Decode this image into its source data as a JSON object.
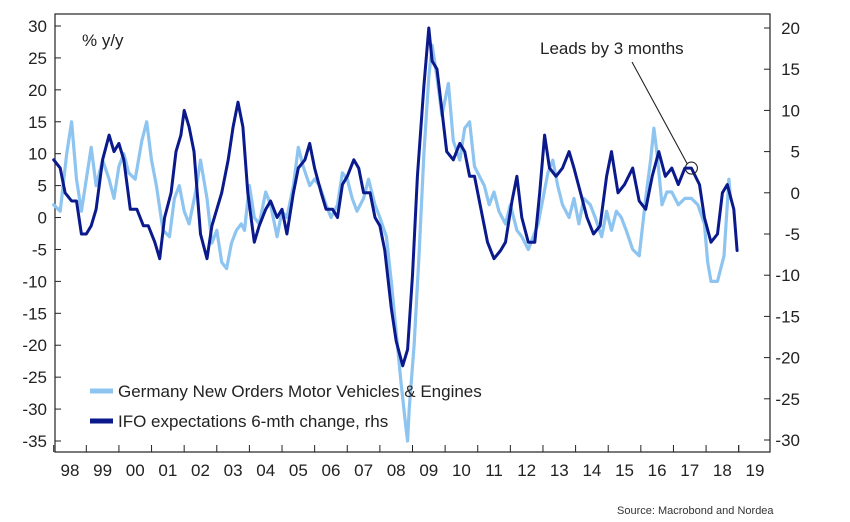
{
  "chart_data": {
    "type": "line",
    "ylabel_left": "% y/y",
    "ylabel_right": "",
    "ylim_left": [
      -37,
      30
    ],
    "ylim_right": [
      -31,
      20
    ],
    "yticks_left": [
      "30",
      "25",
      "20",
      "15",
      "10",
      "5",
      "0",
      "-5",
      "-10",
      "-15",
      "-20",
      "-25",
      "-30",
      "-35"
    ],
    "yticks_right": [
      "20",
      "15",
      "10",
      "5",
      "0",
      "-5",
      "-10",
      "-15",
      "-20",
      "-25",
      "-30"
    ],
    "xlim": [
      1998.0,
      2019.3
    ],
    "xticks": [
      "98",
      "99",
      "00",
      "01",
      "02",
      "03",
      "04",
      "05",
      "06",
      "07",
      "08",
      "09",
      "10",
      "11",
      "12",
      "13",
      "14",
      "15",
      "16",
      "17",
      "18",
      "19"
    ],
    "grid": false,
    "legend_placement": "bottom-left",
    "annotation": {
      "text": "Leads by 3 months",
      "x": 2017.55,
      "y_right": 3.0
    },
    "source": "Source: Macrobond and Nordea",
    "colors": {
      "light": "#8ec4f0",
      "dark": "#0a1a8c"
    },
    "series": [
      {
        "name": "Germany New Orders Motor Vehicles & Engines",
        "axis": "left",
        "color": "#8ec4f0",
        "points": [
          [
            1998.0,
            2
          ],
          [
            1998.2,
            1
          ],
          [
            1998.4,
            10
          ],
          [
            1998.55,
            15
          ],
          [
            1998.7,
            6
          ],
          [
            1998.85,
            1
          ],
          [
            1999.0,
            6
          ],
          [
            1999.15,
            11
          ],
          [
            1999.3,
            5
          ],
          [
            1999.5,
            9
          ],
          [
            1999.7,
            6
          ],
          [
            1999.85,
            3
          ],
          [
            2000.0,
            8
          ],
          [
            2000.15,
            10
          ],
          [
            2000.3,
            7
          ],
          [
            2000.5,
            6
          ],
          [
            2000.7,
            12
          ],
          [
            2000.85,
            15
          ],
          [
            2001.0,
            9
          ],
          [
            2001.15,
            5
          ],
          [
            2001.35,
            -2
          ],
          [
            2001.55,
            -3
          ],
          [
            2001.7,
            3
          ],
          [
            2001.85,
            5
          ],
          [
            2002.0,
            1
          ],
          [
            2002.15,
            -1
          ],
          [
            2002.35,
            4
          ],
          [
            2002.5,
            9
          ],
          [
            2002.7,
            3
          ],
          [
            2002.85,
            -4
          ],
          [
            2003.0,
            -2
          ],
          [
            2003.15,
            -7
          ],
          [
            2003.3,
            -8
          ],
          [
            2003.45,
            -4
          ],
          [
            2003.6,
            -2
          ],
          [
            2003.75,
            -1
          ],
          [
            2003.85,
            -2
          ],
          [
            2004.0,
            5
          ],
          [
            2004.15,
            0
          ],
          [
            2004.3,
            -1
          ],
          [
            2004.5,
            4
          ],
          [
            2004.65,
            2
          ],
          [
            2004.85,
            -3
          ],
          [
            2005.0,
            1
          ],
          [
            2005.15,
            0
          ],
          [
            2005.35,
            5
          ],
          [
            2005.5,
            11
          ],
          [
            2005.65,
            8
          ],
          [
            2005.85,
            5
          ],
          [
            2006.0,
            6
          ],
          [
            2006.15,
            5
          ],
          [
            2006.35,
            2
          ],
          [
            2006.5,
            0
          ],
          [
            2006.7,
            2
          ],
          [
            2006.85,
            7
          ],
          [
            2007.0,
            6
          ],
          [
            2007.15,
            3
          ],
          [
            2007.3,
            1
          ],
          [
            2007.5,
            3
          ],
          [
            2007.65,
            6
          ],
          [
            2007.85,
            2
          ],
          [
            2008.0,
            0
          ],
          [
            2008.2,
            -3
          ],
          [
            2008.35,
            -10
          ],
          [
            2008.5,
            -18
          ],
          [
            2008.65,
            -26
          ],
          [
            2008.8,
            -33
          ],
          [
            2008.85,
            -35
          ],
          [
            2008.9,
            -30
          ],
          [
            2009.05,
            -20
          ],
          [
            2009.2,
            -6
          ],
          [
            2009.35,
            10
          ],
          [
            2009.5,
            22
          ],
          [
            2009.6,
            27
          ],
          [
            2009.75,
            22
          ],
          [
            2009.9,
            16
          ],
          [
            2010.1,
            21
          ],
          [
            2010.25,
            12
          ],
          [
            2010.45,
            9
          ],
          [
            2010.6,
            14
          ],
          [
            2010.75,
            15
          ],
          [
            2010.9,
            8
          ],
          [
            2011.0,
            7
          ],
          [
            2011.2,
            5
          ],
          [
            2011.35,
            2
          ],
          [
            2011.5,
            4
          ],
          [
            2011.65,
            1
          ],
          [
            2011.85,
            -1
          ],
          [
            2012.0,
            2
          ],
          [
            2012.2,
            -2
          ],
          [
            2012.35,
            -3
          ],
          [
            2012.55,
            -5
          ],
          [
            2012.7,
            -3
          ],
          [
            2012.85,
            -1
          ],
          [
            2013.0,
            3
          ],
          [
            2013.15,
            7
          ],
          [
            2013.3,
            9
          ],
          [
            2013.45,
            5
          ],
          [
            2013.6,
            2
          ],
          [
            2013.8,
            0
          ],
          [
            2013.95,
            3
          ],
          [
            2014.1,
            -1
          ],
          [
            2014.25,
            3
          ],
          [
            2014.45,
            2
          ],
          [
            2014.6,
            0
          ],
          [
            2014.8,
            -3
          ],
          [
            2014.95,
            1
          ],
          [
            2015.1,
            -2
          ],
          [
            2015.25,
            1
          ],
          [
            2015.4,
            0
          ],
          [
            2015.55,
            -2
          ],
          [
            2015.75,
            -5
          ],
          [
            2015.95,
            -6
          ],
          [
            2016.15,
            3
          ],
          [
            2016.3,
            9
          ],
          [
            2016.4,
            14
          ],
          [
            2016.5,
            10
          ],
          [
            2016.65,
            2
          ],
          [
            2016.8,
            4
          ],
          [
            2016.95,
            4
          ],
          [
            2017.15,
            2
          ],
          [
            2017.35,
            3
          ],
          [
            2017.55,
            3
          ],
          [
            2017.75,
            2
          ],
          [
            2017.95,
            -1
          ],
          [
            2018.05,
            -7
          ],
          [
            2018.15,
            -10
          ],
          [
            2018.35,
            -10
          ],
          [
            2018.55,
            -6
          ],
          [
            2018.7,
            6
          ],
          [
            2018.75,
            3
          ]
        ]
      },
      {
        "name": "IFO expectations 6-mth change, rhs",
        "axis": "right",
        "color": "#0a1a8c",
        "points": [
          [
            1998.0,
            4
          ],
          [
            1998.2,
            3
          ],
          [
            1998.35,
            0
          ],
          [
            1998.55,
            -1
          ],
          [
            1998.7,
            -1
          ],
          [
            1998.85,
            -5
          ],
          [
            1999.0,
            -5
          ],
          [
            1999.15,
            -4
          ],
          [
            1999.3,
            -2
          ],
          [
            1999.5,
            4
          ],
          [
            1999.7,
            7
          ],
          [
            1999.85,
            5
          ],
          [
            2000.0,
            6
          ],
          [
            2000.15,
            4
          ],
          [
            2000.35,
            -2
          ],
          [
            2000.55,
            -2
          ],
          [
            2000.75,
            -4
          ],
          [
            2000.9,
            -4
          ],
          [
            2001.1,
            -6
          ],
          [
            2001.25,
            -8
          ],
          [
            2001.4,
            -3
          ],
          [
            2001.6,
            0
          ],
          [
            2001.75,
            5
          ],
          [
            2001.9,
            7
          ],
          [
            2002.0,
            10
          ],
          [
            2002.15,
            8
          ],
          [
            2002.3,
            5
          ],
          [
            2002.5,
            -5
          ],
          [
            2002.7,
            -8
          ],
          [
            2002.85,
            -4
          ],
          [
            2003.0,
            -2
          ],
          [
            2003.15,
            0
          ],
          [
            2003.35,
            4
          ],
          [
            2003.5,
            8
          ],
          [
            2003.65,
            11
          ],
          [
            2003.8,
            8
          ],
          [
            2003.95,
            0
          ],
          [
            2004.15,
            -6
          ],
          [
            2004.3,
            -4
          ],
          [
            2004.5,
            -2
          ],
          [
            2004.65,
            -1
          ],
          [
            2004.85,
            -3
          ],
          [
            2005.0,
            -2
          ],
          [
            2005.15,
            -5
          ],
          [
            2005.35,
            0
          ],
          [
            2005.5,
            3
          ],
          [
            2005.7,
            4
          ],
          [
            2005.85,
            6
          ],
          [
            2006.0,
            3
          ],
          [
            2006.2,
            0
          ],
          [
            2006.35,
            -2
          ],
          [
            2006.55,
            -2
          ],
          [
            2006.7,
            -3
          ],
          [
            2006.85,
            1
          ],
          [
            2007.0,
            2
          ],
          [
            2007.2,
            4
          ],
          [
            2007.35,
            3
          ],
          [
            2007.5,
            0
          ],
          [
            2007.7,
            0
          ],
          [
            2007.85,
            -3
          ],
          [
            2008.0,
            -4
          ],
          [
            2008.15,
            -7
          ],
          [
            2008.35,
            -14
          ],
          [
            2008.5,
            -18
          ],
          [
            2008.7,
            -21
          ],
          [
            2008.85,
            -19
          ],
          [
            2009.0,
            -10
          ],
          [
            2009.15,
            2
          ],
          [
            2009.35,
            13
          ],
          [
            2009.5,
            20
          ],
          [
            2009.6,
            16
          ],
          [
            2009.75,
            15
          ],
          [
            2009.9,
            10
          ],
          [
            2010.05,
            5
          ],
          [
            2010.25,
            4
          ],
          [
            2010.45,
            6
          ],
          [
            2010.6,
            5
          ],
          [
            2010.75,
            2
          ],
          [
            2010.9,
            2
          ],
          [
            2011.1,
            -2
          ],
          [
            2011.3,
            -6
          ],
          [
            2011.5,
            -8
          ],
          [
            2011.7,
            -7
          ],
          [
            2011.85,
            -6
          ],
          [
            2012.05,
            -1
          ],
          [
            2012.2,
            2
          ],
          [
            2012.35,
            -3
          ],
          [
            2012.55,
            -6
          ],
          [
            2012.75,
            -6
          ],
          [
            2012.9,
            0
          ],
          [
            2013.05,
            7
          ],
          [
            2013.2,
            3
          ],
          [
            2013.4,
            2
          ],
          [
            2013.6,
            3
          ],
          [
            2013.8,
            5
          ],
          [
            2013.95,
            3
          ],
          [
            2014.15,
            0
          ],
          [
            2014.35,
            -3
          ],
          [
            2014.55,
            -5
          ],
          [
            2014.75,
            -4
          ],
          [
            2014.95,
            2
          ],
          [
            2015.1,
            5
          ],
          [
            2015.3,
            0
          ],
          [
            2015.5,
            1
          ],
          [
            2015.75,
            3
          ],
          [
            2015.95,
            -1
          ],
          [
            2016.15,
            -2
          ],
          [
            2016.35,
            2
          ],
          [
            2016.55,
            5
          ],
          [
            2016.75,
            2
          ],
          [
            2016.95,
            3
          ],
          [
            2017.15,
            1
          ],
          [
            2017.35,
            3
          ],
          [
            2017.55,
            3
          ],
          [
            2017.8,
            1
          ],
          [
            2017.95,
            -3
          ],
          [
            2018.15,
            -6
          ],
          [
            2018.35,
            -5
          ],
          [
            2018.5,
            0
          ],
          [
            2018.65,
            1
          ],
          [
            2018.85,
            -2
          ],
          [
            2018.95,
            -7
          ]
        ]
      }
    ]
  }
}
